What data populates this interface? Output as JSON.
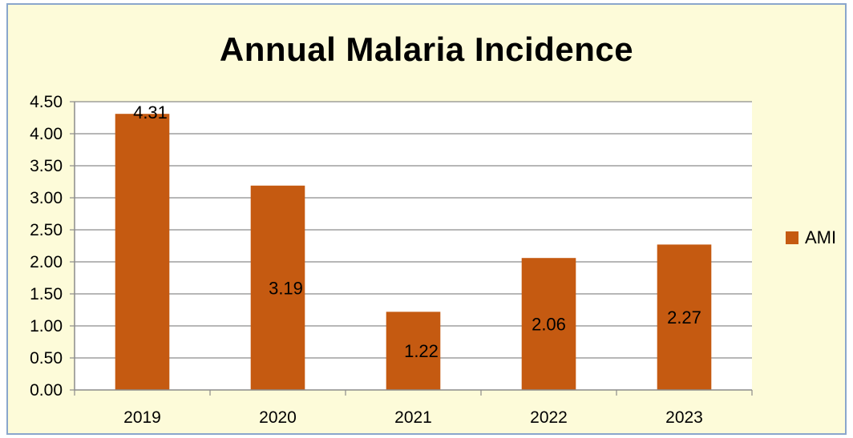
{
  "chart_data": {
    "type": "bar",
    "title": "Annual Malaria Incidence",
    "categories": [
      "2019",
      "2020",
      "2021",
      "2022",
      "2023"
    ],
    "series": [
      {
        "name": "AMI",
        "values": [
          4.31,
          3.19,
          1.22,
          2.06,
          2.27
        ],
        "color": "#c55a11"
      }
    ],
    "data_labels": [
      "4.31",
      "3.19",
      "1.22",
      "2.06",
      "2.27"
    ],
    "y_ticks": [
      "0.00",
      "0.50",
      "1.00",
      "1.50",
      "2.00",
      "2.50",
      "3.00",
      "3.50",
      "4.00",
      "4.50"
    ],
    "ylim": [
      0,
      4.5
    ],
    "grid": true,
    "legend_position": "right"
  },
  "colors": {
    "background": "#fdfbd9",
    "plot_area": "#ffffff",
    "border": "#8aa6cc",
    "bar": "#c55a11"
  }
}
